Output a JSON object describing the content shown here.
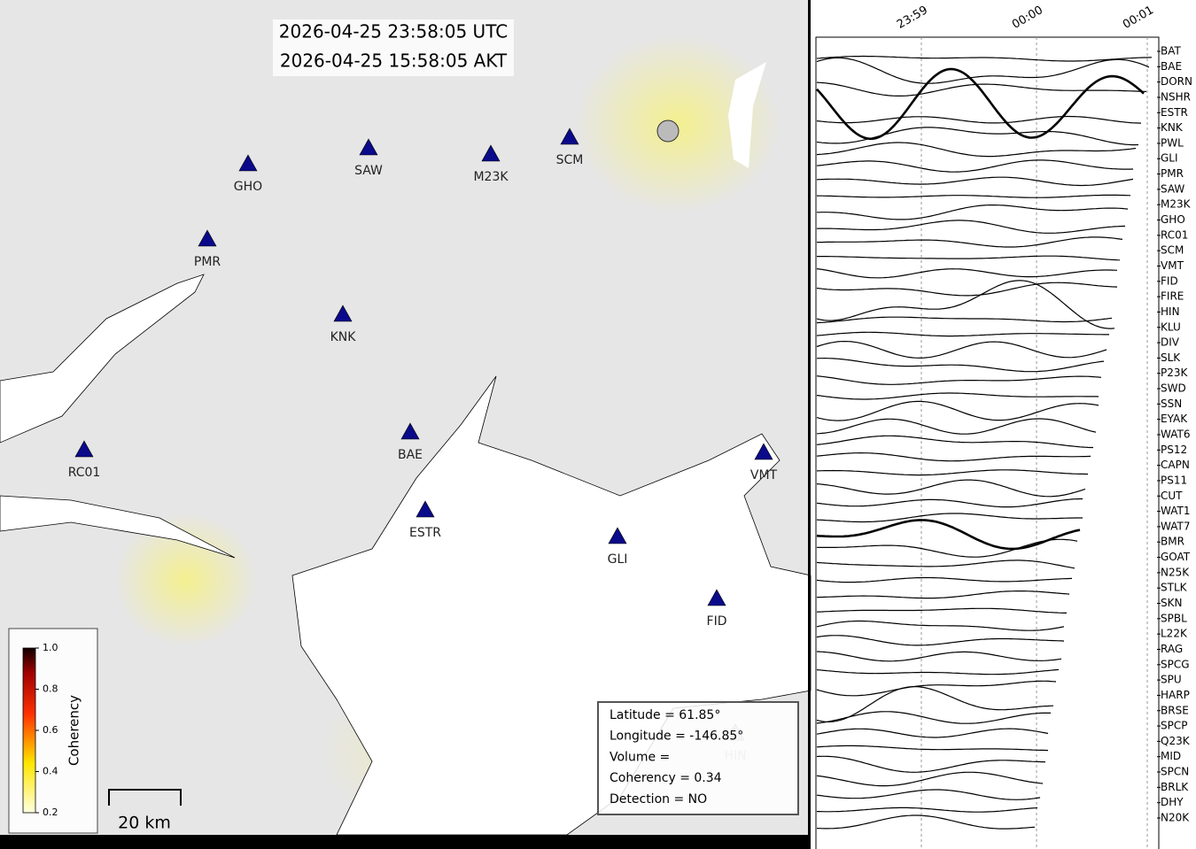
{
  "map": {
    "times": [
      "2026-04-25 23:58:05 UTC",
      "2026-04-25 15:58:05 AKT"
    ],
    "stations": [
      "GHO",
      "SAW",
      "M23K",
      "SCM",
      "PMR",
      "KNK",
      "BAE",
      "RC01",
      "ESTR",
      "GLI",
      "VMT",
      "FID",
      "HIN"
    ],
    "info": [
      "Latitude = 61.85°",
      "Longitude = -146.85°",
      "Volume =",
      "Coherency = 0.34",
      "Detection = NO"
    ],
    "colorbar": {
      "label": "Coherency",
      "ticks": [
        "1.0",
        "0.8",
        "0.6",
        "0.4",
        "0.2"
      ]
    },
    "scale": "20 km"
  },
  "traces": {
    "time_labels": [
      "23:59",
      "00:00",
      "00:01"
    ],
    "stations": [
      "BAT",
      "BAE",
      "DORN",
      "NSHR",
      "ESTR",
      "KNK",
      "PWL",
      "GLI",
      "PMR",
      "SAW",
      "M23K",
      "GHO",
      "RC01",
      "SCM",
      "VMT",
      "FID",
      "FIRE",
      "HIN",
      "KLU",
      "DIV",
      "SLK",
      "P23K",
      "SWD",
      "SSN",
      "EYAK",
      "WAT6",
      "PS12",
      "CAPN",
      "PS11",
      "CUT",
      "WAT1",
      "WAT7",
      "BMR",
      "GOAT",
      "N25K",
      "STLK",
      "SKN",
      "SPBL",
      "L22K",
      "RAG",
      "SPCG",
      "SPU",
      "HARP",
      "BRSE",
      "SPCP",
      "Q23K",
      "MID",
      "SPCN",
      "BRLK",
      "DHY",
      "N20K"
    ]
  }
}
